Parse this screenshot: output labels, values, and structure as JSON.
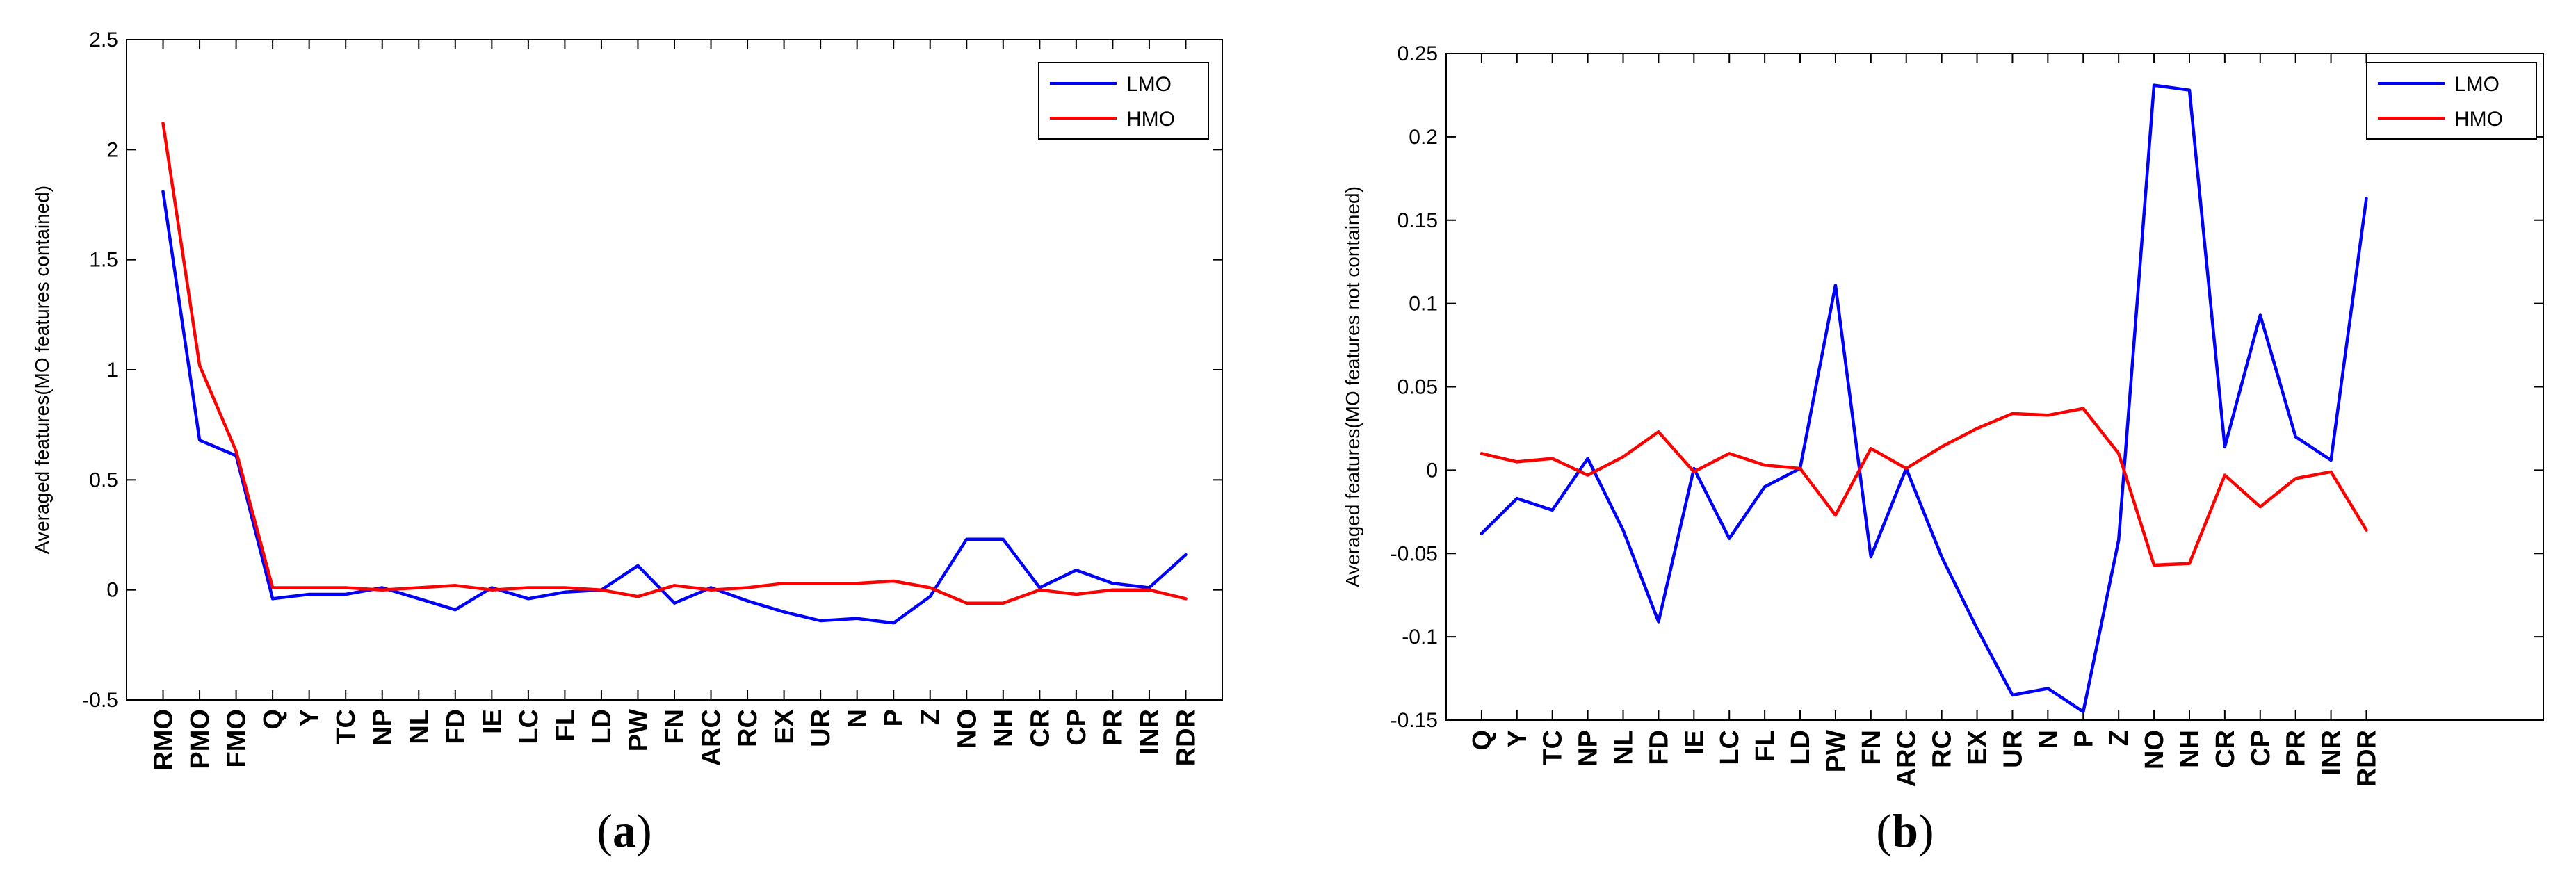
{
  "chart_data": [
    {
      "type": "line",
      "caption_letter": "a",
      "title": "",
      "xlabel": "",
      "ylabel": "Averaged features(MO features contained)",
      "ylim": [
        -0.5,
        2.5
      ],
      "yticks": [
        "2.5",
        "2",
        "1.5",
        "1",
        "0.5",
        "0",
        "-0.5"
      ],
      "ytick_values": [
        2.5,
        2,
        1.5,
        1,
        0.5,
        0,
        -0.5
      ],
      "categories": [
        "RMO",
        "PMO",
        "FMO",
        "Q",
        "Y",
        "TC",
        "NP",
        "NL",
        "FD",
        "IE",
        "LC",
        "FL",
        "LD",
        "PW",
        "FN",
        "ARC",
        "RC",
        "EX",
        "UR",
        "N",
        "P",
        "Z",
        "NO",
        "NH",
        "CR",
        "CP",
        "PR",
        "INR",
        "RDR"
      ],
      "legend": [
        "LMO",
        "HMO"
      ],
      "series": [
        {
          "name": "LMO",
          "color": "#0000ff",
          "values": [
            1.81,
            0.68,
            0.61,
            -0.04,
            -0.02,
            -0.02,
            0.01,
            -0.04,
            -0.09,
            0.01,
            -0.04,
            -0.01,
            0.0,
            0.11,
            -0.06,
            0.01,
            -0.05,
            -0.1,
            -0.14,
            -0.13,
            -0.15,
            -0.03,
            0.23,
            0.23,
            0.01,
            0.09,
            0.03,
            0.01,
            0.16
          ]
        },
        {
          "name": "HMO",
          "color": "#ff0000",
          "values": [
            2.12,
            1.02,
            0.63,
            0.01,
            0.01,
            0.01,
            0.0,
            0.01,
            0.02,
            0.0,
            0.01,
            0.01,
            0.0,
            -0.03,
            0.02,
            0.0,
            0.01,
            0.03,
            0.03,
            0.03,
            0.04,
            0.01,
            -0.06,
            -0.06,
            0.0,
            -0.02,
            0.0,
            0.0,
            -0.04
          ]
        }
      ]
    },
    {
      "type": "line",
      "caption_letter": "b",
      "title": "",
      "xlabel": "",
      "ylabel": "Averaged features(MO features not contained)",
      "ylim": [
        -0.15,
        0.25
      ],
      "yticks": [
        "0.25",
        "0.2",
        "0.15",
        "0.1",
        "0.05",
        "0",
        "-0.05",
        "-0.1",
        "-0.15"
      ],
      "ytick_values": [
        0.25,
        0.2,
        0.15,
        0.1,
        0.05,
        0,
        -0.05,
        -0.1,
        -0.15
      ],
      "categories": [
        "Q",
        "Y",
        "TC",
        "NP",
        "NL",
        "FD",
        "IE",
        "LC",
        "FL",
        "LD",
        "PW",
        "FN",
        "ARC",
        "RC",
        "EX",
        "UR",
        "N",
        "P",
        "Z",
        "NO",
        "NH",
        "CR",
        "CP",
        "PR",
        "INR",
        "RDR"
      ],
      "x_slots": 31,
      "legend": [
        "LMO",
        "HMO"
      ],
      "series": [
        {
          "name": "LMO",
          "color": "#0000ff",
          "values": [
            -0.038,
            -0.017,
            -0.024,
            0.007,
            -0.036,
            -0.091,
            0.001,
            -0.041,
            -0.01,
            0.001,
            0.111,
            -0.052,
            0.001,
            -0.052,
            -0.095,
            -0.135,
            -0.131,
            -0.145,
            -0.042,
            0.231,
            0.228,
            0.014,
            0.093,
            0.02,
            0.006,
            0.163
          ]
        },
        {
          "name": "HMO",
          "color": "#ff0000",
          "values": [
            0.01,
            0.005,
            0.007,
            -0.003,
            0.008,
            0.023,
            -0.001,
            0.01,
            0.003,
            0.001,
            -0.027,
            0.013,
            0.001,
            0.014,
            0.025,
            0.034,
            0.033,
            0.037,
            0.01,
            -0.057,
            -0.056,
            -0.003,
            -0.022,
            -0.005,
            -0.001,
            -0.036
          ]
        }
      ]
    }
  ]
}
